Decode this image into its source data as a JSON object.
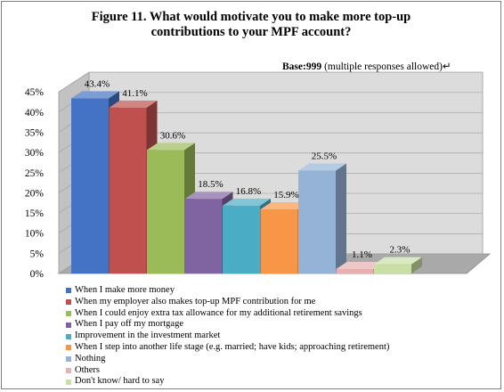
{
  "chart_data": {
    "type": "bar",
    "title_line1": "Figure 11. What would motivate you to make more top-up",
    "title_line2": "contributions to your MPF account?",
    "base_label": "Base:",
    "base_value": "999",
    "base_note": "(multiple responses allowed)",
    "base_mark": "↵",
    "categories": [
      "When I make more money",
      "When my employer also makes top-up MPF contribution  for me",
      "When I could enjoy extra tax allowance  for my additional  retirement  savings",
      "When I pay off my mortgage",
      "Improvement  in the investment  market",
      "When I step into another life stage (e.g. married;  have kids;  approaching retirement)",
      "Nothing",
      "Others",
      "Don't know/ hard to say"
    ],
    "values": [
      43.4,
      41.1,
      30.6,
      18.5,
      16.8,
      15.9,
      25.5,
      1.1,
      2.3
    ],
    "value_labels": [
      "43.4%",
      "41.1%",
      "30.6%",
      "18.5%",
      "16.8%",
      "15.9%",
      "25.5%",
      "1.1%",
      "2.3%"
    ],
    "colors": [
      "#4472c4",
      "#c0504d",
      "#9bbb59",
      "#8064a2",
      "#4bacc6",
      "#f79646",
      "#95b3d7",
      "#e6b0b0",
      "#c9dfa5"
    ],
    "yticks": [
      "0%",
      "5%",
      "10%",
      "15%",
      "20%",
      "25%",
      "30%",
      "35%",
      "40%",
      "45%"
    ],
    "ylim": [
      0,
      45
    ],
    "grid": true,
    "legend_position": "bottom",
    "three_d": true
  }
}
